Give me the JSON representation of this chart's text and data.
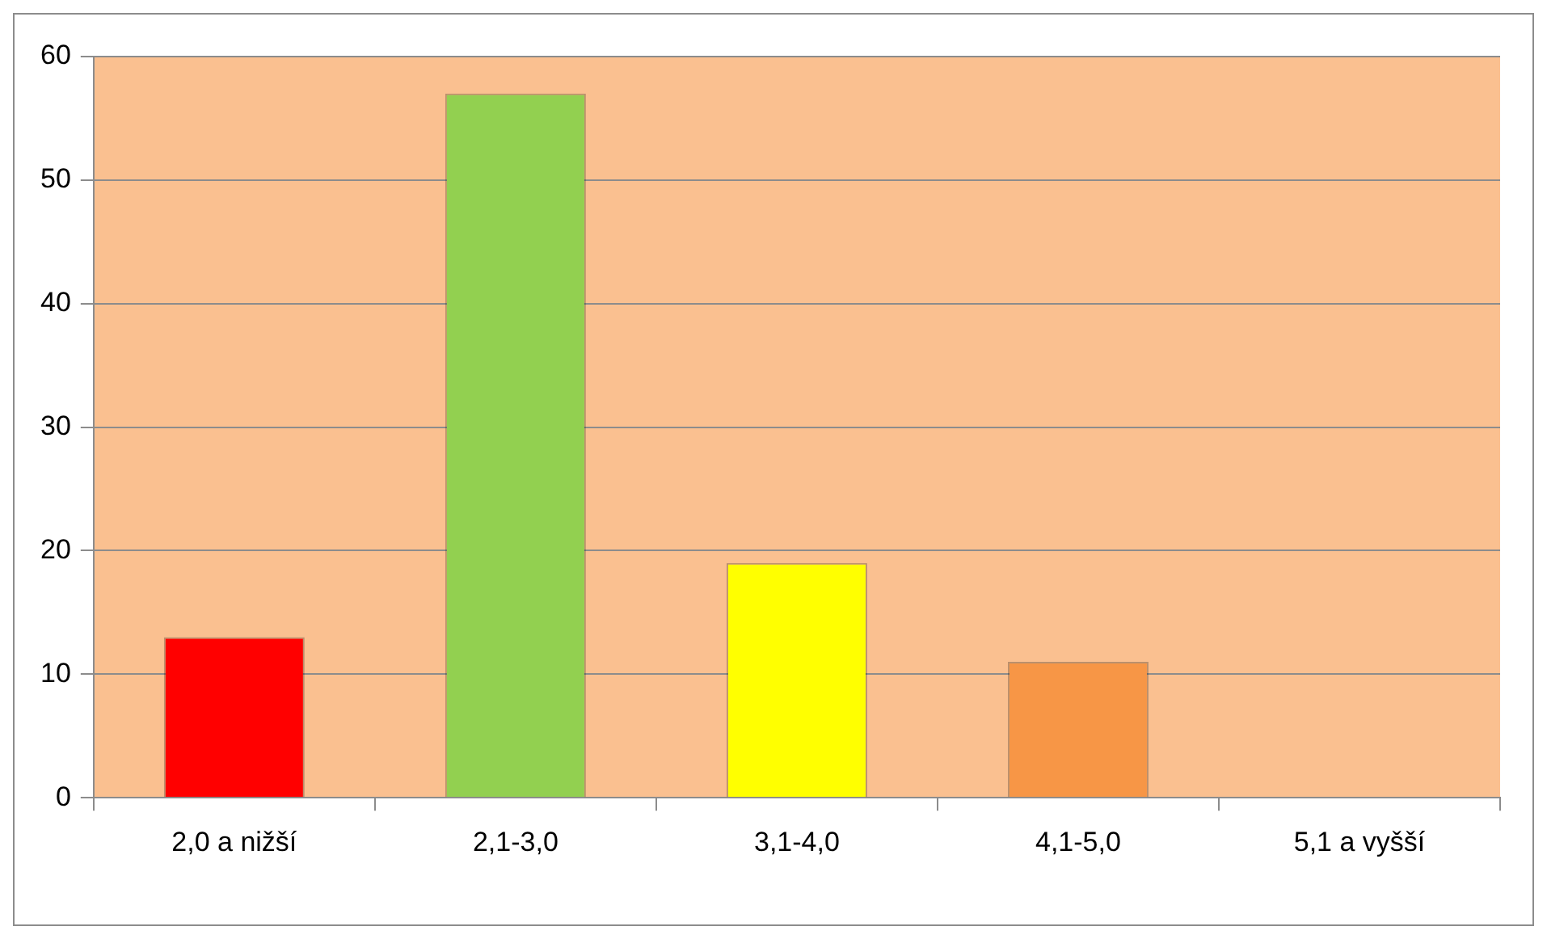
{
  "chart_data": {
    "type": "bar",
    "categories": [
      "2,0 a nižší",
      "2,1-3,0",
      "3,1-4,0",
      "4,1-5,0",
      "5,1 a vyšší"
    ],
    "values": [
      13,
      57,
      19,
      11,
      0
    ],
    "colors": [
      "#ff0000",
      "#92d050",
      "#ffff00",
      "#f79646",
      "#f79646"
    ],
    "ylim": [
      0,
      60
    ],
    "yticks": [
      0,
      10,
      20,
      30,
      40,
      50,
      60
    ],
    "grid": "y",
    "legend": false
  }
}
